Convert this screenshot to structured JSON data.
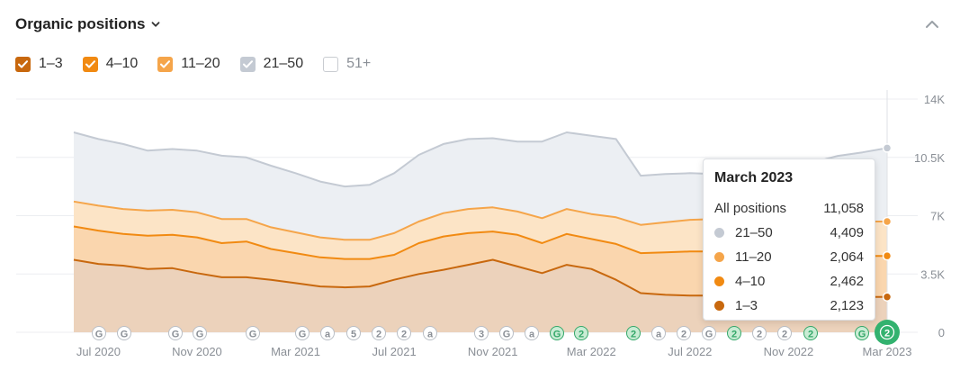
{
  "header": {
    "title": "Organic positions"
  },
  "legend": [
    {
      "label": "1–3",
      "checked": true,
      "color": "#c8680e"
    },
    {
      "label": "4–10",
      "checked": true,
      "color": "#f18a12"
    },
    {
      "label": "11–20",
      "checked": true,
      "color": "#f5a54a"
    },
    {
      "label": "21–50",
      "checked": true,
      "color": "#c4cad3"
    },
    {
      "label": "51+",
      "checked": false,
      "color": "#ffffff"
    }
  ],
  "tooltip": {
    "title": "March 2023",
    "rows": [
      {
        "label": "All positions",
        "value": "11,058",
        "color": ""
      },
      {
        "label": "21–50",
        "value": "4,409",
        "color": "#c4cad3"
      },
      {
        "label": "11–20",
        "value": "2,064",
        "color": "#f5a54a"
      },
      {
        "label": "4–10",
        "value": "2,462",
        "color": "#f18a12"
      },
      {
        "label": "1–3",
        "value": "2,123",
        "color": "#c8680e"
      }
    ]
  },
  "chart_data": {
    "type": "area",
    "stacked": true,
    "title": "",
    "x": [
      "Jun 2020",
      "Jul 2020",
      "Aug 2020",
      "Sep 2020",
      "Oct 2020",
      "Nov 2020",
      "Dec 2020",
      "Jan 2021",
      "Feb 2021",
      "Mar 2021",
      "Apr 2021",
      "May 2021",
      "Jun 2021",
      "Jul 2021",
      "Aug 2021",
      "Sep 2021",
      "Oct 2021",
      "Nov 2021",
      "Dec 2021",
      "Jan 2022",
      "Feb 2022",
      "Mar 2022",
      "Apr 2022",
      "May 2022",
      "Jun 2022",
      "Jul 2022",
      "Aug 2022",
      "Sep 2022",
      "Oct 2022",
      "Nov 2022",
      "Dec 2022",
      "Jan 2023",
      "Feb 2023",
      "Mar 2023"
    ],
    "x_tick_labels": [
      "Jul 2020",
      "Nov 2020",
      "Mar 2021",
      "Jul 2021",
      "Nov 2021",
      "Mar 2022",
      "Jul 2022",
      "Nov 2022",
      "Mar 2023"
    ],
    "y_tick_labels": [
      "0",
      "3.5K",
      "7K",
      "10.5K",
      "14K"
    ],
    "ylim": [
      0,
      14000
    ],
    "series": [
      {
        "name": "1–3",
        "color": "#c8680e",
        "fill": "#ecd2bb",
        "values": [
          4350,
          4100,
          4000,
          3800,
          3850,
          3550,
          3300,
          3300,
          3150,
          2950,
          2750,
          2700,
          2750,
          3150,
          3500,
          3750,
          4050,
          4350,
          3950,
          3550,
          4050,
          3800,
          3150,
          2350,
          2250,
          2200,
          2200,
          2150,
          2150,
          2150,
          2150,
          2150,
          2120,
          2123
        ]
      },
      {
        "name": "4–10",
        "color": "#f18a12",
        "fill": "#fad6ae",
        "values": [
          2000,
          2000,
          1900,
          2000,
          2000,
          2150,
          2050,
          2150,
          1850,
          1800,
          1750,
          1700,
          1650,
          1500,
          1850,
          2000,
          1900,
          1700,
          1900,
          1800,
          1850,
          1800,
          2150,
          2400,
          2550,
          2650,
          2650,
          2650,
          2580,
          2550,
          2500,
          2480,
          2465,
          2462
        ]
      },
      {
        "name": "11–20",
        "color": "#f5a54a",
        "fill": "#fce4c6",
        "values": [
          1500,
          1500,
          1500,
          1500,
          1500,
          1500,
          1450,
          1350,
          1300,
          1250,
          1200,
          1150,
          1150,
          1300,
          1300,
          1400,
          1450,
          1450,
          1400,
          1500,
          1500,
          1500,
          1600,
          1700,
          1800,
          1900,
          1950,
          2000,
          2000,
          2050,
          2050,
          2060,
          2063,
          2064
        ]
      },
      {
        "name": "21–50",
        "color": "#c4cad3",
        "fill": "#eceff3",
        "values": [
          4150,
          4000,
          3900,
          3600,
          3650,
          3700,
          3800,
          3700,
          3700,
          3550,
          3350,
          3200,
          3300,
          3600,
          4000,
          4150,
          4200,
          4150,
          4200,
          4600,
          4600,
          4700,
          4700,
          2950,
          2900,
          2800,
          2700,
          2600,
          2450,
          3000,
          3500,
          3900,
          4150,
          4409
        ]
      }
    ]
  },
  "markers": {
    "labels": [
      "G",
      "G",
      "G",
      "G",
      "G",
      "G",
      "a",
      "5",
      "2",
      "2",
      "a",
      "3",
      "G",
      "a",
      "G",
      "2",
      "2",
      "a",
      "2",
      "G",
      "2",
      "2",
      "2",
      "2",
      "G",
      "2"
    ],
    "highlight_colors": {
      "normal": "#8a8f96",
      "green": "#35a86a",
      "green_bg": "#c9ecd4",
      "active_bg": "#33b26f"
    }
  }
}
